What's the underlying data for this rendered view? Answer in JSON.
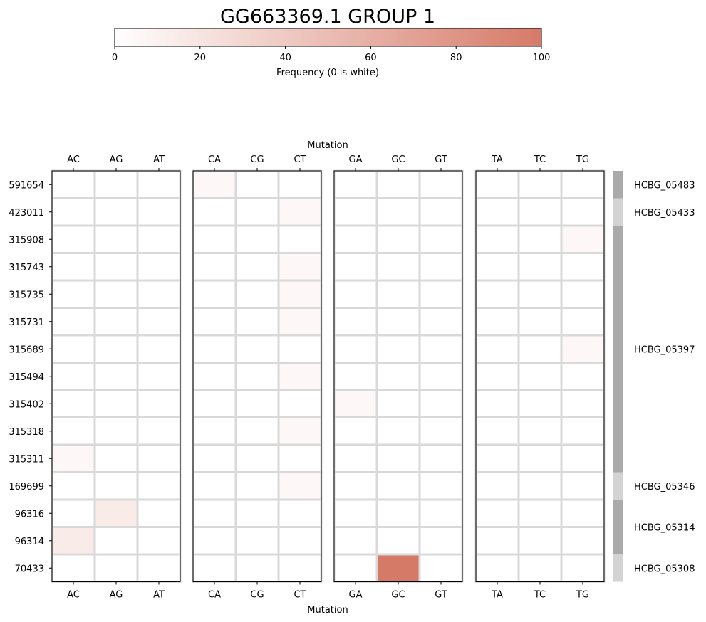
{
  "chart_data": {
    "type": "heatmap",
    "title": "GG663369.1 GROUP 1",
    "colorbar": {
      "label": "Frequency (0 is white)",
      "min": 0,
      "max": 100,
      "ticks": [
        "0",
        "20",
        "40",
        "60",
        "80",
        "100"
      ],
      "color_low": "#ffffff",
      "color_high": "#d67a68"
    },
    "xlabel": "Mutation",
    "panels": [
      {
        "columns": [
          "AC",
          "AG",
          "AT"
        ]
      },
      {
        "columns": [
          "CA",
          "CG",
          "CT"
        ]
      },
      {
        "columns": [
          "GA",
          "GC",
          "GT"
        ]
      },
      {
        "columns": [
          "TA",
          "TC",
          "TG"
        ]
      }
    ],
    "rows": [
      "591654",
      "423011",
      "315908",
      "315743",
      "315735",
      "315731",
      "315689",
      "315494",
      "315402",
      "315318",
      "315311",
      "169699",
      "96316",
      "96314",
      "70433"
    ],
    "values": [
      [
        0,
        0,
        0,
        5,
        0,
        0,
        0,
        0,
        0,
        0,
        0,
        0
      ],
      [
        0,
        0,
        0,
        0,
        0,
        5,
        0,
        0,
        0,
        0,
        0,
        0
      ],
      [
        0,
        0,
        0,
        0,
        0,
        0,
        0,
        0,
        0,
        0,
        0,
        5
      ],
      [
        0,
        0,
        0,
        0,
        0,
        5,
        0,
        0,
        0,
        0,
        0,
        0
      ],
      [
        0,
        0,
        0,
        0,
        0,
        5,
        0,
        0,
        0,
        0,
        0,
        0
      ],
      [
        0,
        0,
        0,
        0,
        0,
        5,
        0,
        0,
        0,
        0,
        0,
        0
      ],
      [
        0,
        0,
        0,
        0,
        0,
        0,
        0,
        0,
        0,
        0,
        0,
        5
      ],
      [
        0,
        0,
        0,
        0,
        0,
        5,
        0,
        0,
        0,
        0,
        0,
        0
      ],
      [
        0,
        0,
        0,
        0,
        0,
        0,
        5,
        0,
        0,
        0,
        0,
        0
      ],
      [
        0,
        0,
        0,
        0,
        0,
        5,
        0,
        0,
        0,
        0,
        0,
        0
      ],
      [
        5,
        0,
        0,
        0,
        0,
        0,
        0,
        0,
        0,
        0,
        0,
        0
      ],
      [
        0,
        0,
        0,
        0,
        0,
        5,
        0,
        0,
        0,
        0,
        0,
        0
      ],
      [
        0,
        15,
        0,
        0,
        0,
        0,
        0,
        0,
        0,
        0,
        0,
        0
      ],
      [
        15,
        0,
        0,
        0,
        0,
        0,
        0,
        0,
        0,
        0,
        0,
        0
      ],
      [
        0,
        0,
        0,
        0,
        0,
        0,
        0,
        100,
        0,
        0,
        0,
        0
      ]
    ],
    "groups": [
      {
        "label": "HCBG_05483",
        "rows": 1,
        "color": "#aaaaaa"
      },
      {
        "label": "HCBG_05433",
        "rows": 1,
        "color": "#d3d3d3"
      },
      {
        "label": "HCBG_05397",
        "rows": 9,
        "color": "#aaaaaa"
      },
      {
        "label": "HCBG_05346",
        "rows": 1,
        "color": "#d3d3d3"
      },
      {
        "label": "HCBG_05314",
        "rows": 2,
        "color": "#aaaaaa"
      },
      {
        "label": "HCBG_05308",
        "rows": 1,
        "color": "#d3d3d3"
      }
    ],
    "grid_color": "#d9d9d9"
  }
}
